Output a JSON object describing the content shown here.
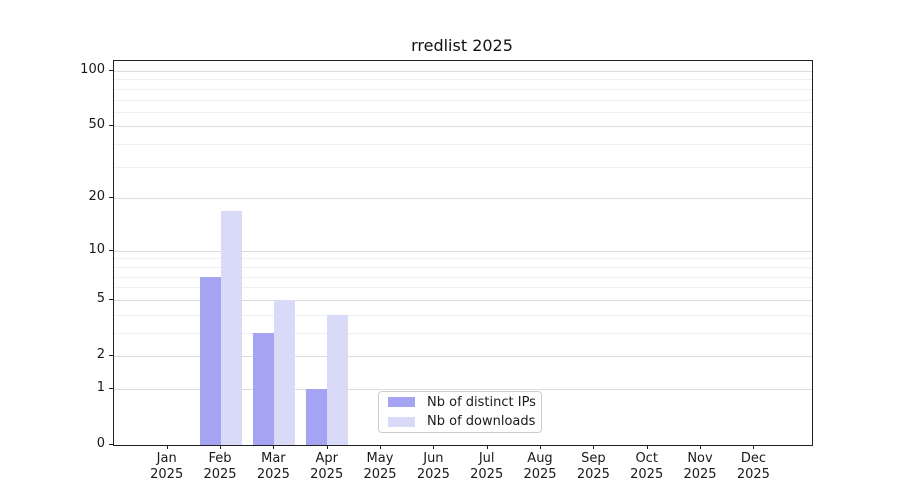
{
  "chart_data": {
    "type": "bar",
    "title": "rredlist 2025",
    "categories": [
      "Jan",
      "Feb",
      "Mar",
      "Apr",
      "May",
      "Jun",
      "Jul",
      "Aug",
      "Sep",
      "Oct",
      "Nov",
      "Dec"
    ],
    "year_suffix": "2025",
    "series": [
      {
        "name": "Nb of distinct IPs",
        "color": "#a4a4f2",
        "values": [
          0,
          7,
          3,
          1,
          0,
          0,
          0,
          0,
          0,
          0,
          0,
          0
        ]
      },
      {
        "name": "Nb of downloads",
        "color": "#d9d9f8",
        "values": [
          0,
          17,
          5,
          4,
          0,
          0,
          0,
          0,
          0,
          0,
          0,
          0
        ]
      }
    ],
    "xlabel": "",
    "ylabel": "",
    "yscale": "log1p",
    "ylim": [
      0,
      113
    ],
    "y_ticks": [
      0,
      1,
      2,
      5,
      10,
      20,
      50,
      100
    ],
    "y_minor_gridlines": [
      3,
      4,
      6,
      7,
      8,
      9,
      30,
      40,
      60,
      70,
      80,
      90
    ],
    "grid": "horizontal",
    "legend_position": "inside-bottom-center",
    "colors": {
      "spine": "#1f1f1f",
      "grid_major": "#dcdcdc",
      "grid_minor": "#f0f0f0",
      "text": "#1a1a1a",
      "legend_border": "#cccccc",
      "background": "#ffffff"
    }
  }
}
